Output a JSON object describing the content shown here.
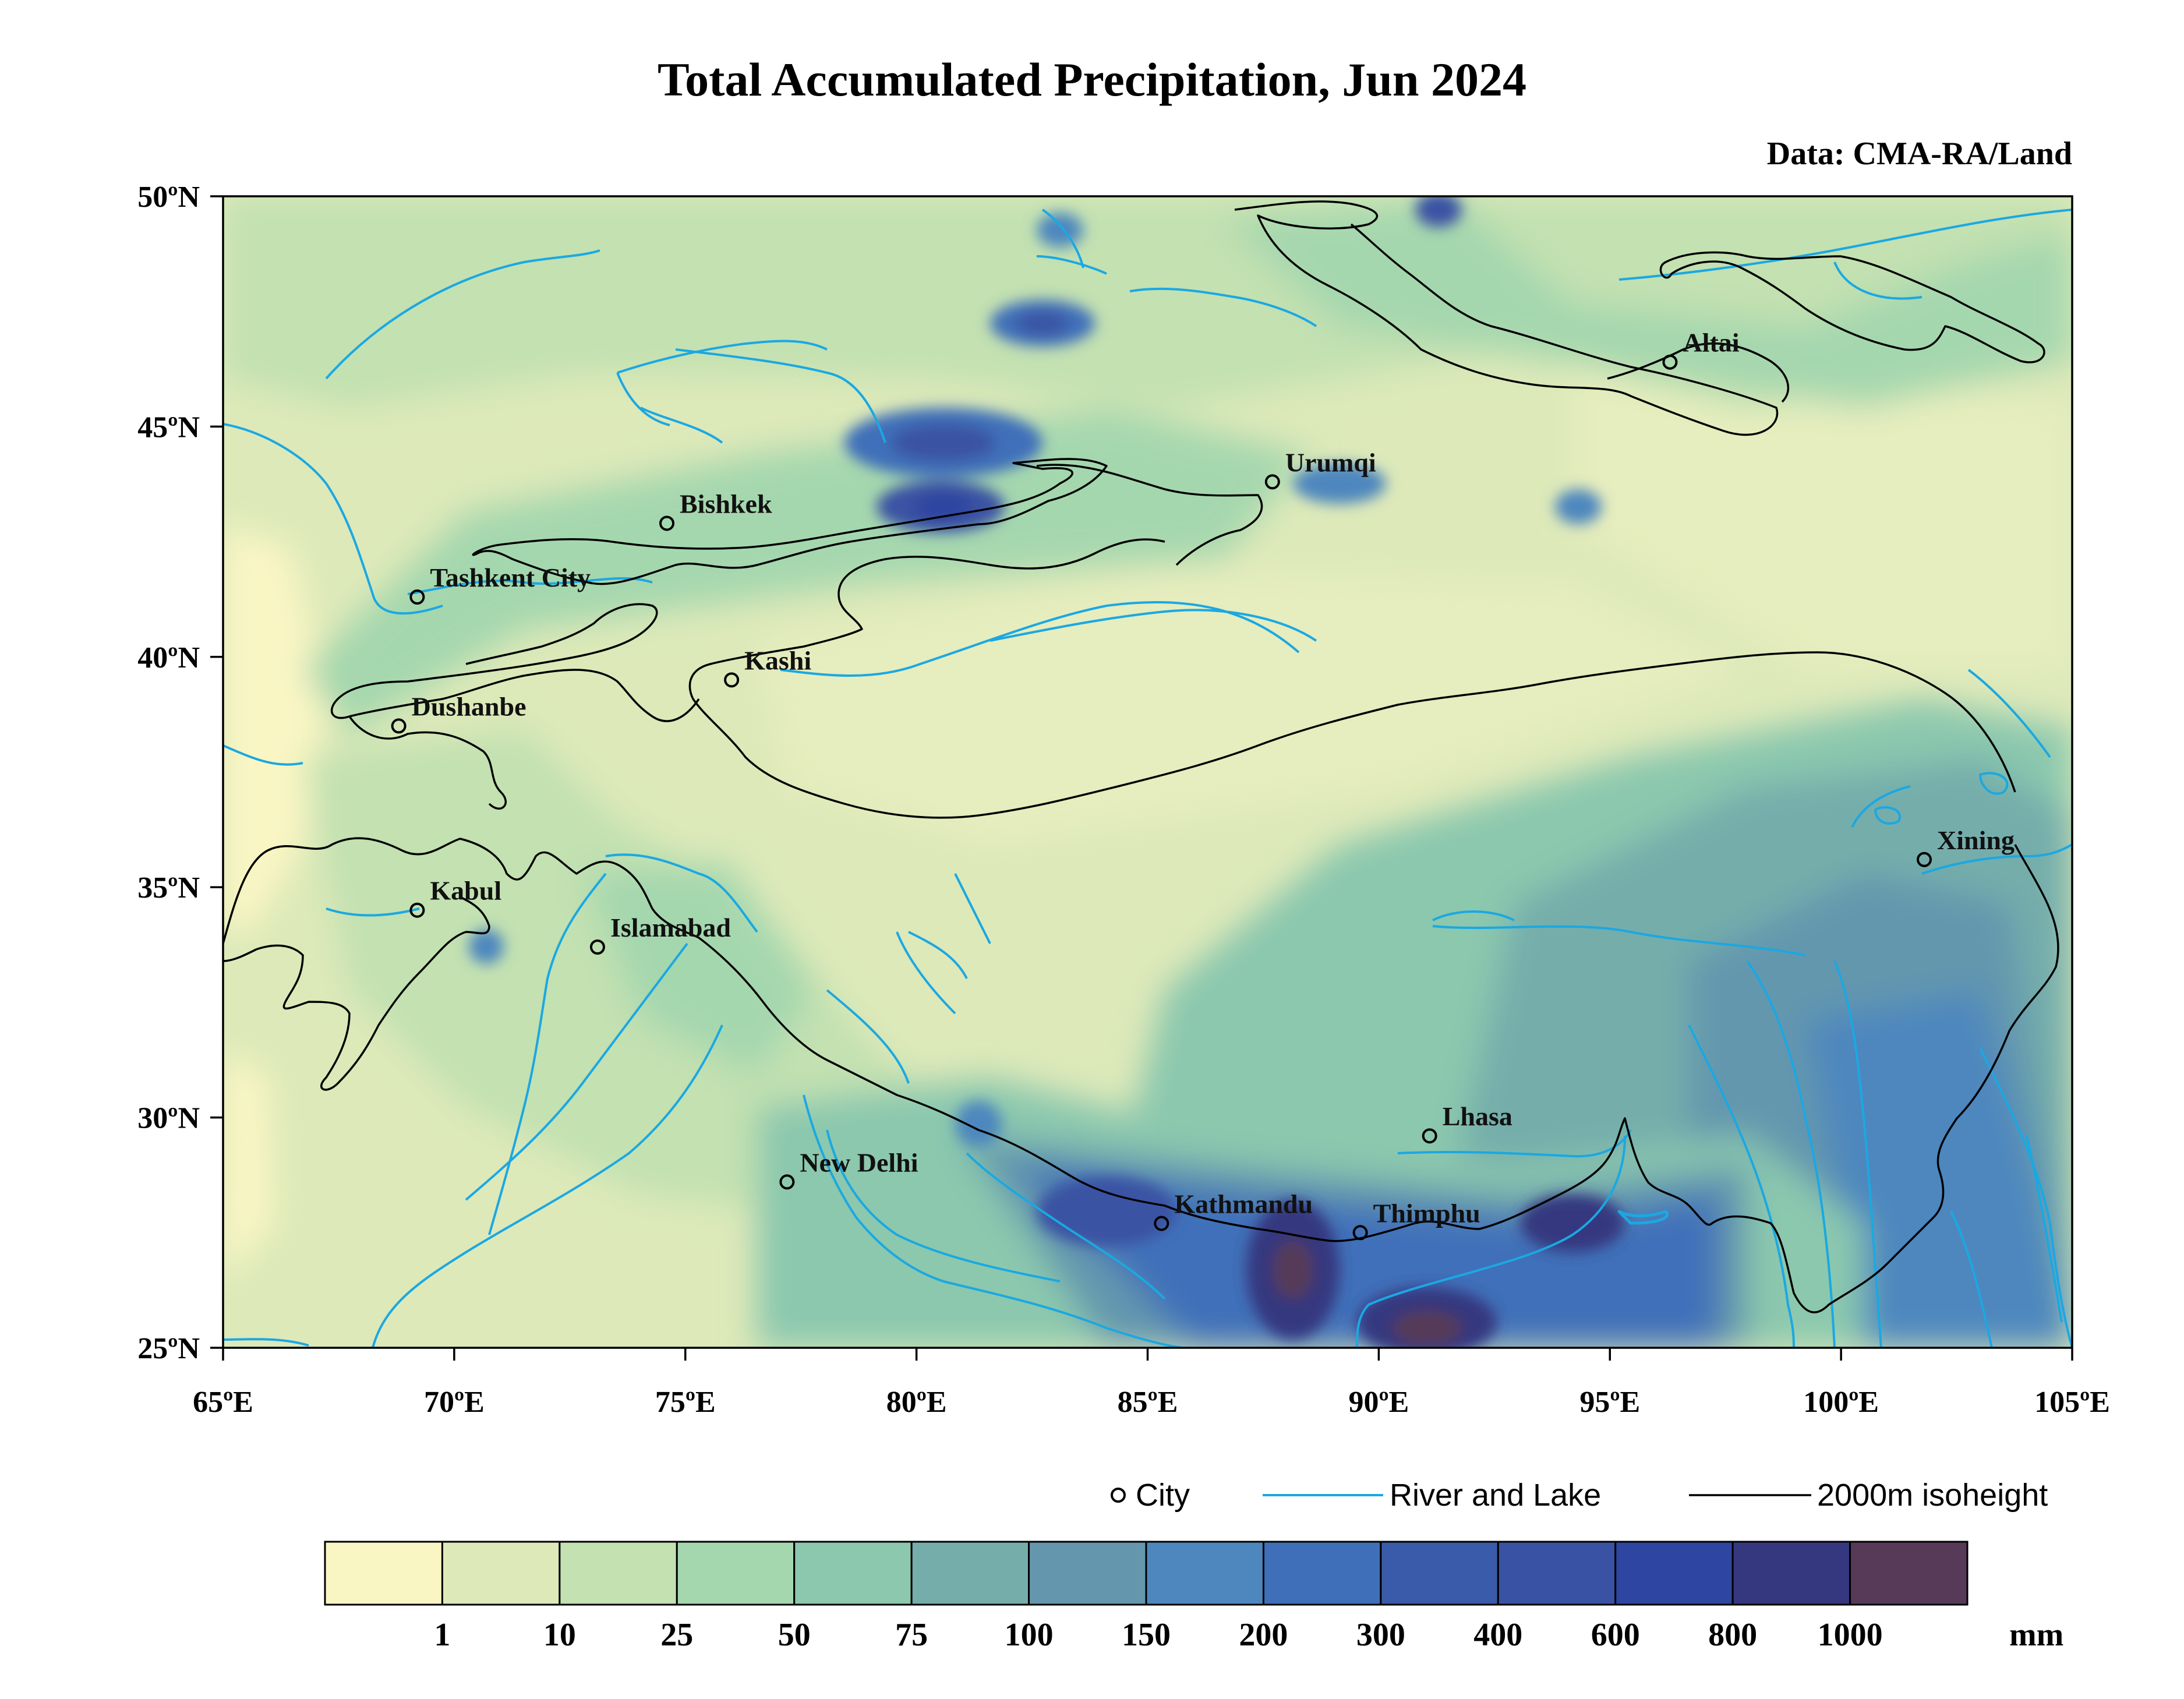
{
  "title": "Total Accumulated Precipitation, Jun 2024",
  "source": "Data: CMA-RA/Land",
  "lon_ticks": [
    "65ºE",
    "70ºE",
    "75ºE",
    "80ºE",
    "85ºE",
    "90ºE",
    "95ºE",
    "100ºE",
    "105ºE"
  ],
  "lat_ticks": [
    "50ºN",
    "45ºN",
    "40ºN",
    "35ºN",
    "30ºN",
    "25ºN"
  ],
  "extent": {
    "lon": [
      65,
      105
    ],
    "lat": [
      25,
      50
    ]
  },
  "cities": [
    {
      "name": "Altai",
      "lon": 96.3,
      "lat": 46.4
    },
    {
      "name": "Urumqi",
      "lon": 87.7,
      "lat": 43.8
    },
    {
      "name": "Bishkek",
      "lon": 74.6,
      "lat": 42.9
    },
    {
      "name": "Tashkent City",
      "lon": 69.2,
      "lat": 41.3
    },
    {
      "name": "Kashi",
      "lon": 76.0,
      "lat": 39.5
    },
    {
      "name": "Dushanbe",
      "lon": 68.8,
      "lat": 38.5
    },
    {
      "name": "Xining",
      "lon": 101.8,
      "lat": 35.6
    },
    {
      "name": "Kabul",
      "lon": 69.2,
      "lat": 34.5
    },
    {
      "name": "Islamabad",
      "lon": 73.1,
      "lat": 33.7
    },
    {
      "name": "Lhasa",
      "lon": 91.1,
      "lat": 29.6
    },
    {
      "name": "New Delhi",
      "lon": 77.2,
      "lat": 28.6
    },
    {
      "name": "Kathmandu",
      "lon": 85.3,
      "lat": 27.7
    },
    {
      "name": "Thimphu",
      "lon": 89.6,
      "lat": 27.5
    }
  ],
  "legend": {
    "city": "City",
    "river": "River and Lake",
    "isoheight": "2000m isoheight"
  },
  "colorbar": {
    "unit": "mm",
    "ticks": [
      "1",
      "10",
      "25",
      "50",
      "75",
      "100",
      "150",
      "200",
      "300",
      "400",
      "600",
      "800",
      "1000"
    ],
    "colors": [
      "#faf6c4",
      "#dde9b9",
      "#c3e1b1",
      "#a5d7ae",
      "#8bc8ae",
      "#75adab",
      "#6497ae",
      "#4e87be",
      "#3f6fb9",
      "#3a5ba9",
      "#3a52a3",
      "#2e45a1",
      "#36387f",
      "#573a58"
    ]
  },
  "colors": {
    "river": "#1ba8e2",
    "isoheight": "#000000",
    "frame": "#000000"
  }
}
